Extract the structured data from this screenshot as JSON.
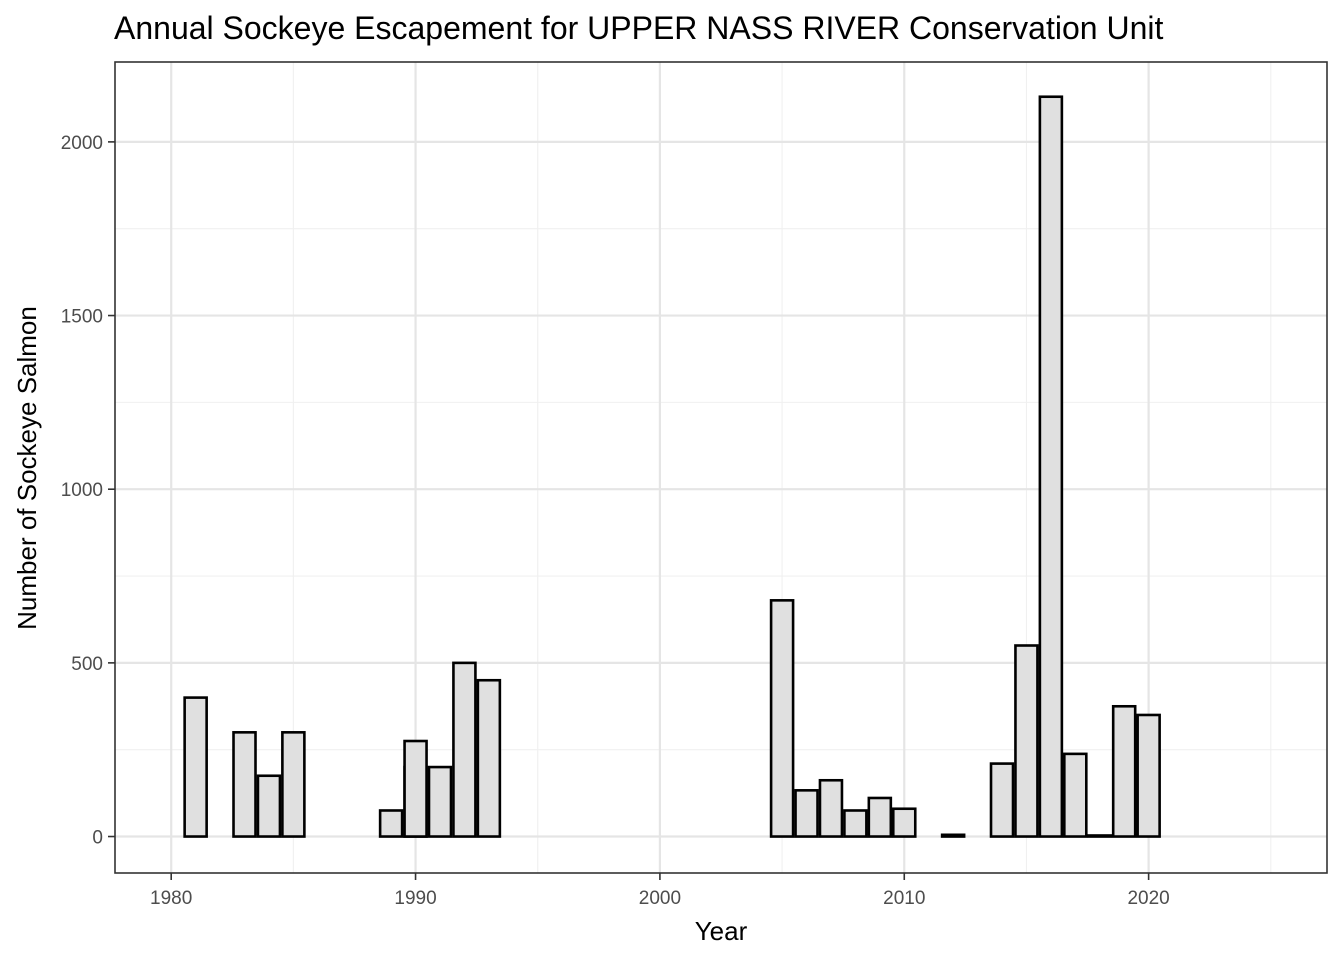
{
  "chart_data": {
    "type": "bar",
    "title": "Annual Sockeye Escapement for UPPER NASS RIVER Conservation Unit",
    "xlabel": "Year",
    "ylabel": "Number of Sockeye Salmon",
    "xlim": [
      1977.7,
      2027.3
    ],
    "ylim": [
      -105,
      2230
    ],
    "x_ticks": [
      1980,
      1990,
      2000,
      2010,
      2020
    ],
    "x_tick_labels": [
      "1980",
      "1990",
      "2000",
      "2010",
      "2020"
    ],
    "y_ticks": [
      0,
      500,
      1000,
      1500,
      2000
    ],
    "y_tick_labels": [
      "0",
      "500",
      "1000",
      "1500",
      "2000"
    ],
    "grid": true,
    "legend": "none",
    "bar_fill": "#e0e0e0",
    "bar_outline": "#000000",
    "bars": [
      {
        "year": 1981,
        "value": 400
      },
      {
        "year": 1983,
        "value": 300
      },
      {
        "year": 1984,
        "value": 175
      },
      {
        "year": 1985,
        "value": 300
      },
      {
        "year": 1989,
        "value": 75
      },
      {
        "year": 1990,
        "value": 200
      },
      {
        "year": 1990,
        "value": 275
      },
      {
        "year": 1991,
        "value": 200
      },
      {
        "year": 1992,
        "value": 500
      },
      {
        "year": 1993,
        "value": 450
      },
      {
        "year": 2005,
        "value": 680
      },
      {
        "year": 2006,
        "value": 133
      },
      {
        "year": 2007,
        "value": 162
      },
      {
        "year": 2008,
        "value": 75
      },
      {
        "year": 2009,
        "value": 111
      },
      {
        "year": 2010,
        "value": 80
      },
      {
        "year": 2012,
        "value": 5
      },
      {
        "year": 2014,
        "value": 210
      },
      {
        "year": 2015,
        "value": 550
      },
      {
        "year": 2016,
        "value": 2130
      },
      {
        "year": 2017,
        "value": 238
      },
      {
        "year": 2018,
        "value": 3
      },
      {
        "year": 2019,
        "value": 375
      },
      {
        "year": 2020,
        "value": 350
      }
    ]
  }
}
